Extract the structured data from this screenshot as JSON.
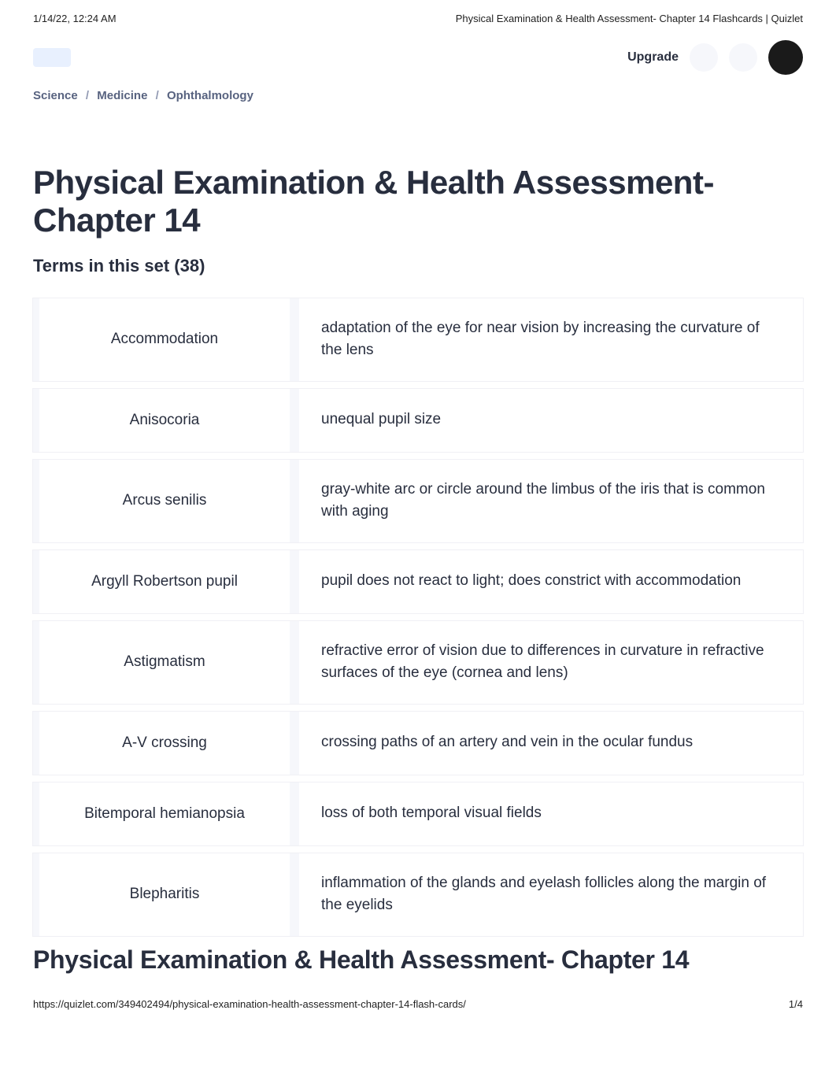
{
  "print_header": {
    "datetime": "1/14/22, 12:24 AM",
    "title": "Physical Examination & Health Assessment- Chapter 14 Flashcards | Quizlet"
  },
  "nav": {
    "upgrade_label": "Upgrade"
  },
  "breadcrumbs": {
    "items": [
      {
        "label": "Science"
      },
      {
        "label": "Medicine"
      },
      {
        "label": "Ophthalmology"
      }
    ],
    "separator": "/"
  },
  "page": {
    "title": "Physical Examination & Health Assessment- Chapter 14",
    "terms_label": "Terms in this set (38)"
  },
  "cards": [
    {
      "term": "Accommodation",
      "definition": "adaptation of the eye for near vision by increasing the curvature of the lens"
    },
    {
      "term": "Anisocoria",
      "definition": "unequal pupil size"
    },
    {
      "term": "Arcus senilis",
      "definition": "gray-white arc or circle around the limbus of the iris that is common with aging"
    },
    {
      "term": "Argyll Robertson pupil",
      "definition": "pupil does not react to light; does constrict with accommodation"
    },
    {
      "term": "Astigmatism",
      "definition": "refractive error of vision due to differences in curvature in refractive surfaces of the eye (cornea and lens)"
    },
    {
      "term": "A-V crossing",
      "definition": "crossing paths of an artery and vein in the ocular fundus"
    },
    {
      "term": "Bitemporal hemianopsia",
      "definition": "loss of both temporal visual fields"
    },
    {
      "term": "Blepharitis",
      "definition": "inflammation of the glands and eyelash follicles along the margin of the eyelids"
    }
  ],
  "footer": {
    "title": "Physical Examination & Health Assessment- Chapter 14",
    "url": "https://quizlet.com/349402494/physical-examination-health-assessment-chapter-14-flash-cards/",
    "page_indicator": "1/4"
  },
  "colors": {
    "text_primary": "#282e3e",
    "text_secondary": "#586380",
    "background": "#ffffff",
    "card_border": "#f6f7fb"
  }
}
